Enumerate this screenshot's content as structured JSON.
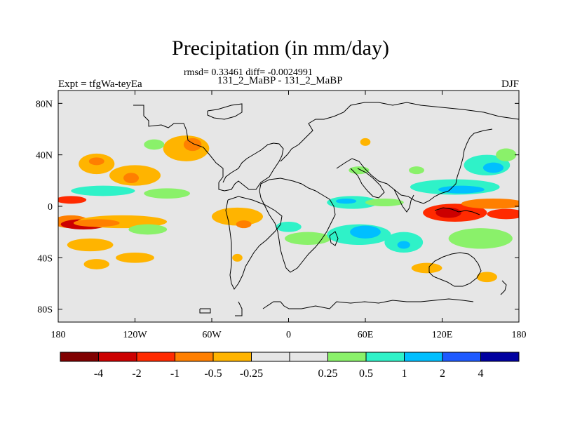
{
  "chart_data": {
    "type": "heatmap",
    "title": "Precipitation (in mm/day)",
    "stats_line": "rmsd= 0.33461 diff= -0.0024991",
    "subtitle": "131_2_MaBP - 131_2_MaBP",
    "left_label": "Expt = tfgWa-teyEa",
    "right_label": "DJF",
    "x_ticks": [
      "180",
      "120W",
      "60W",
      "0",
      "60E",
      "120E",
      "180"
    ],
    "y_ticks": [
      "80N",
      "40N",
      "0",
      "40S",
      "80S"
    ],
    "xlim": [
      -180,
      180
    ],
    "ylim": [
      -90,
      90
    ],
    "colorbar": {
      "colors": [
        "#800000",
        "#cc0000",
        "#ff2a00",
        "#ff7f00",
        "#ffb400",
        "#e6e6e6",
        "#e6e6e6",
        "#8af16a",
        "#2ff2c8",
        "#00bfff",
        "#1e5aff",
        "#0000a0"
      ],
      "labels": [
        "-4",
        "-2",
        "-1",
        "-0.5",
        "-0.25",
        "0.25",
        "0.5",
        "1",
        "2",
        "4"
      ]
    },
    "blobs": [
      {
        "lon": -170,
        "lat": -12,
        "rx": 14,
        "ry": 5,
        "color": "#ff7f00"
      },
      {
        "lon": -160,
        "lat": -14,
        "rx": 18,
        "ry": 4,
        "color": "#cc0000"
      },
      {
        "lon": -130,
        "lat": -12,
        "rx": 35,
        "ry": 5,
        "color": "#ffb400"
      },
      {
        "lon": -150,
        "lat": -13,
        "rx": 18,
        "ry": 3,
        "color": "#ff7f00"
      },
      {
        "lon": -170,
        "lat": 5,
        "rx": 12,
        "ry": 3,
        "color": "#ff2a00"
      },
      {
        "lon": -145,
        "lat": 12,
        "rx": 25,
        "ry": 4,
        "color": "#2ff2c8"
      },
      {
        "lon": -95,
        "lat": 10,
        "rx": 18,
        "ry": 4,
        "color": "#8af16a"
      },
      {
        "lon": -150,
        "lat": 33,
        "rx": 14,
        "ry": 8,
        "color": "#ffb400"
      },
      {
        "lon": -150,
        "lat": 35,
        "rx": 6,
        "ry": 3,
        "color": "#ff7f00"
      },
      {
        "lon": -120,
        "lat": 24,
        "rx": 20,
        "ry": 8,
        "color": "#ffb400"
      },
      {
        "lon": -123,
        "lat": 22,
        "rx": 6,
        "ry": 4,
        "color": "#ff7f00"
      },
      {
        "lon": -80,
        "lat": 45,
        "rx": 18,
        "ry": 10,
        "color": "#ffb400"
      },
      {
        "lon": -75,
        "lat": 48,
        "rx": 7,
        "ry": 5,
        "color": "#ff7f00"
      },
      {
        "lon": -105,
        "lat": 48,
        "rx": 8,
        "ry": 4,
        "color": "#8af16a"
      },
      {
        "lon": -110,
        "lat": -18,
        "rx": 15,
        "ry": 4,
        "color": "#8af16a"
      },
      {
        "lon": -40,
        "lat": -8,
        "rx": 20,
        "ry": 7,
        "color": "#ffb400"
      },
      {
        "lon": -35,
        "lat": -14,
        "rx": 6,
        "ry": 3,
        "color": "#ff7f00"
      },
      {
        "lon": 0,
        "lat": -16,
        "rx": 10,
        "ry": 4,
        "color": "#2ff2c8"
      },
      {
        "lon": 15,
        "lat": -25,
        "rx": 18,
        "ry": 5,
        "color": "#8af16a"
      },
      {
        "lon": 55,
        "lat": -22,
        "rx": 25,
        "ry": 8,
        "color": "#2ff2c8"
      },
      {
        "lon": 60,
        "lat": -20,
        "rx": 12,
        "ry": 5,
        "color": "#00bfff"
      },
      {
        "lon": 50,
        "lat": 3,
        "rx": 20,
        "ry": 5,
        "color": "#2ff2c8"
      },
      {
        "lon": 45,
        "lat": 4,
        "rx": 8,
        "ry": 2,
        "color": "#00bfff"
      },
      {
        "lon": 75,
        "lat": 3,
        "rx": 15,
        "ry": 3,
        "color": "#8af16a"
      },
      {
        "lon": 90,
        "lat": -28,
        "rx": 15,
        "ry": 8,
        "color": "#2ff2c8"
      },
      {
        "lon": 90,
        "lat": -30,
        "rx": 5,
        "ry": 3,
        "color": "#00bfff"
      },
      {
        "lon": 130,
        "lat": -5,
        "rx": 25,
        "ry": 7,
        "color": "#ff2a00"
      },
      {
        "lon": 125,
        "lat": -5,
        "rx": 10,
        "ry": 4,
        "color": "#cc0000"
      },
      {
        "lon": 160,
        "lat": 2,
        "rx": 25,
        "ry": 4,
        "color": "#ff7f00"
      },
      {
        "lon": 170,
        "lat": -6,
        "rx": 15,
        "ry": 4,
        "color": "#ff2a00"
      },
      {
        "lon": 150,
        "lat": -25,
        "rx": 25,
        "ry": 8,
        "color": "#8af16a"
      },
      {
        "lon": 130,
        "lat": 15,
        "rx": 35,
        "ry": 6,
        "color": "#2ff2c8"
      },
      {
        "lon": 135,
        "lat": 13,
        "rx": 18,
        "ry": 3,
        "color": "#00bfff"
      },
      {
        "lon": 155,
        "lat": 32,
        "rx": 18,
        "ry": 8,
        "color": "#2ff2c8"
      },
      {
        "lon": 160,
        "lat": 30,
        "rx": 8,
        "ry": 4,
        "color": "#00bfff"
      },
      {
        "lon": 170,
        "lat": 40,
        "rx": 8,
        "ry": 5,
        "color": "#8af16a"
      },
      {
        "lon": 108,
        "lat": -48,
        "rx": 12,
        "ry": 4,
        "color": "#ffb400"
      },
      {
        "lon": 155,
        "lat": -55,
        "rx": 8,
        "ry": 4,
        "color": "#ffb400"
      },
      {
        "lon": -155,
        "lat": -30,
        "rx": 18,
        "ry": 5,
        "color": "#ffb400"
      },
      {
        "lon": -120,
        "lat": -40,
        "rx": 15,
        "ry": 4,
        "color": "#ffb400"
      },
      {
        "lon": -150,
        "lat": -45,
        "rx": 10,
        "ry": 4,
        "color": "#ffb400"
      },
      {
        "lon": -40,
        "lat": -40,
        "rx": 4,
        "ry": 3,
        "color": "#ffb400"
      },
      {
        "lon": 55,
        "lat": 28,
        "rx": 8,
        "ry": 3,
        "color": "#8af16a"
      },
      {
        "lon": 100,
        "lat": 28,
        "rx": 6,
        "ry": 3,
        "color": "#8af16a"
      },
      {
        "lon": 60,
        "lat": 50,
        "rx": 4,
        "ry": 3,
        "color": "#ffb400"
      }
    ]
  }
}
